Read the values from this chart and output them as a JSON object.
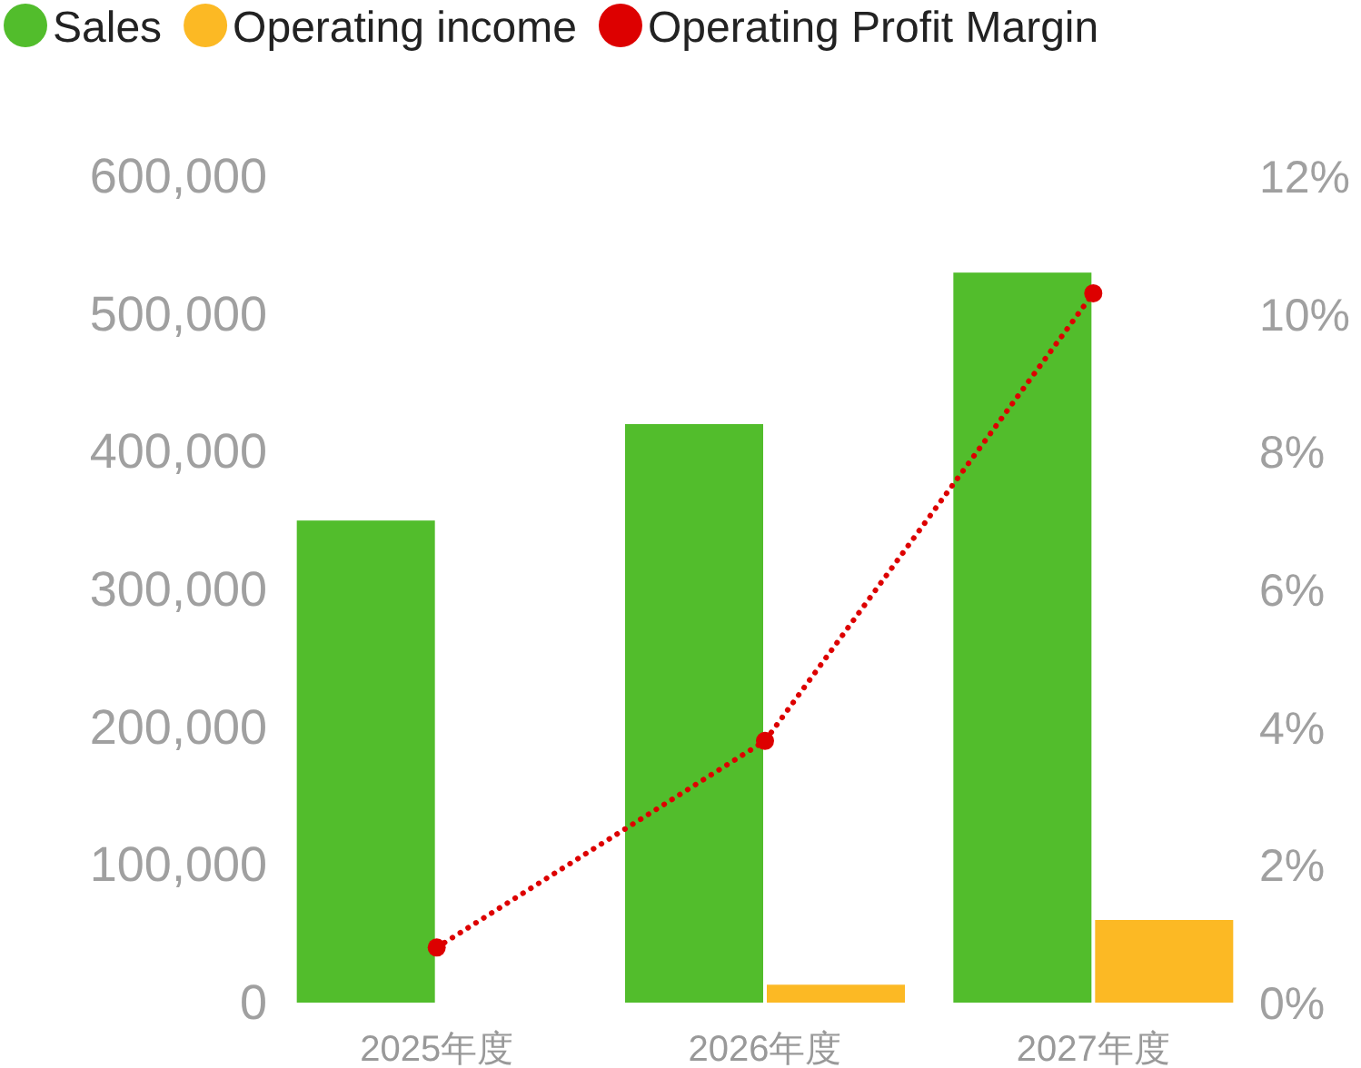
{
  "chart_data": {
    "type": "bar",
    "categories": [
      "2025年度",
      "2026年度",
      "2027年度"
    ],
    "series": [
      {
        "name": "Sales",
        "color": "#52bd2c",
        "values": [
          350000,
          420000,
          530000
        ]
      },
      {
        "name": "Operating income",
        "color": "#fcb924",
        "values": [
          0,
          13000,
          60000
        ]
      },
      {
        "name": "Operating Profit Margin",
        "color": "#dd0000",
        "type": "line",
        "axis": "y2",
        "values": [
          0.8,
          3.8,
          10.3
        ]
      }
    ],
    "ylim": [
      0,
      600000
    ],
    "yticks": [
      {
        "value": 0,
        "label": "0"
      },
      {
        "value": 100000,
        "label": "100,000"
      },
      {
        "value": 200000,
        "label": "200,000"
      },
      {
        "value": 300000,
        "label": "300,000"
      },
      {
        "value": 400000,
        "label": "400,000"
      },
      {
        "value": 500000,
        "label": "500,000"
      },
      {
        "value": 600000,
        "label": "600,000"
      }
    ],
    "y2lim": [
      0,
      12
    ],
    "y2ticks": [
      {
        "value": 0,
        "label": "0%"
      },
      {
        "value": 2,
        "label": "2%"
      },
      {
        "value": 4,
        "label": "4%"
      },
      {
        "value": 6,
        "label": "6%"
      },
      {
        "value": 8,
        "label": "8%"
      },
      {
        "value": 10,
        "label": "10%"
      },
      {
        "value": 12,
        "label": "12%"
      }
    ],
    "legend": "top",
    "marker": "circle",
    "line_style": "dotted",
    "grid": false
  }
}
